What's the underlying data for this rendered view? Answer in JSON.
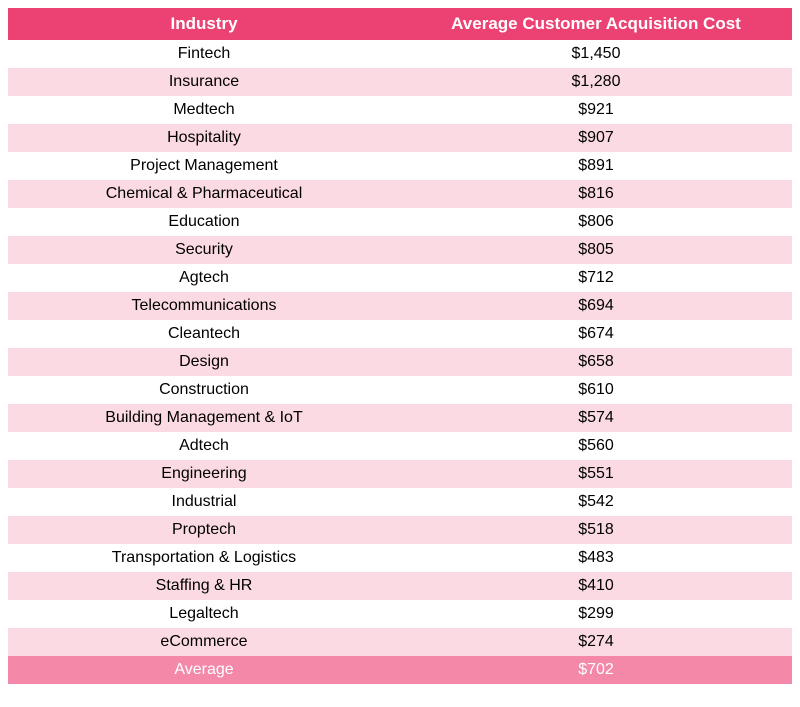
{
  "table": {
    "columns": [
      "Industry",
      "Average Customer Acquisition Cost"
    ],
    "header_bg": "#ec4273",
    "header_fg": "#ffffff",
    "row_bg_odd": "#ffffff",
    "row_bg_even": "#fbdae3",
    "avg_bg": "#f488a9",
    "avg_fg": "#ffffff",
    "text_color": "#000000",
    "font_size_header": 17,
    "font_size_cell": 16,
    "rows": [
      {
        "industry": "Fintech",
        "cost": "$1,450"
      },
      {
        "industry": "Insurance",
        "cost": "$1,280"
      },
      {
        "industry": "Medtech",
        "cost": "$921"
      },
      {
        "industry": "Hospitality",
        "cost": "$907"
      },
      {
        "industry": "Project Management",
        "cost": "$891"
      },
      {
        "industry": "Chemical & Pharmaceutical",
        "cost": "$816"
      },
      {
        "industry": "Education",
        "cost": "$806"
      },
      {
        "industry": "Security",
        "cost": "$805"
      },
      {
        "industry": "Agtech",
        "cost": "$712"
      },
      {
        "industry": "Telecommunications",
        "cost": "$694"
      },
      {
        "industry": "Cleantech",
        "cost": "$674"
      },
      {
        "industry": "Design",
        "cost": "$658"
      },
      {
        "industry": "Construction",
        "cost": "$610"
      },
      {
        "industry": "Building Management & IoT",
        "cost": "$574"
      },
      {
        "industry": "Adtech",
        "cost": "$560"
      },
      {
        "industry": "Engineering",
        "cost": "$551"
      },
      {
        "industry": "Industrial",
        "cost": "$542"
      },
      {
        "industry": "Proptech",
        "cost": "$518"
      },
      {
        "industry": "Transportation & Logistics",
        "cost": "$483"
      },
      {
        "industry": "Staffing & HR",
        "cost": "$410"
      },
      {
        "industry": "Legaltech",
        "cost": "$299"
      },
      {
        "industry": "eCommerce",
        "cost": "$274"
      }
    ],
    "average": {
      "label": "Average",
      "cost": "$702"
    }
  }
}
